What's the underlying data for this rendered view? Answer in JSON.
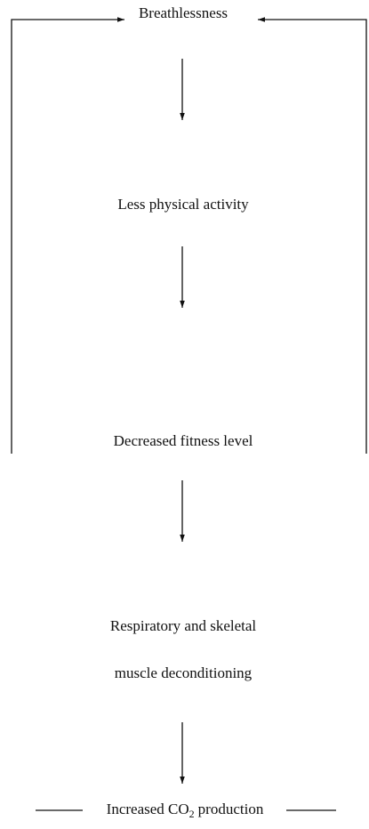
{
  "nodes": [
    {
      "label": "Breathlessness"
    },
    {
      "label": "Less physical activity"
    },
    {
      "label": "Decreased fitness level"
    },
    {
      "lines": [
        "Respiratory and skeletal",
        "muscle deconditioning"
      ]
    },
    {
      "label": "Increased CO",
      "subscript": "2",
      "label_end": "production"
    }
  ]
}
